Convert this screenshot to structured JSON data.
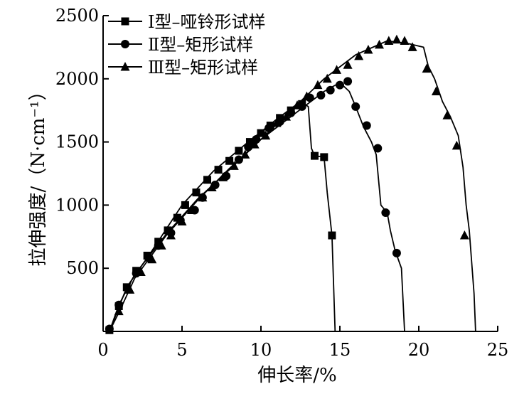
{
  "chart_data": {
    "type": "line",
    "xlabel": "伸长率/%",
    "ylabel": "拉伸强度/（N·cm⁻¹）",
    "xlim": [
      0,
      25
    ],
    "ylim": [
      0,
      2500
    ],
    "xticks": [
      0,
      5,
      10,
      15,
      20,
      25
    ],
    "yticks": [
      500,
      1000,
      1500,
      2000,
      2500
    ],
    "grid": false,
    "legend_position": "top-left",
    "series": [
      {
        "name": "Ⅰ型–哑铃形试样",
        "marker": "square",
        "curve": [
          [
            0.4,
            0
          ],
          [
            1.5,
            350
          ],
          [
            3,
            620
          ],
          [
            5,
            1000
          ],
          [
            7,
            1270
          ],
          [
            9,
            1480
          ],
          [
            11,
            1680
          ],
          [
            12.5,
            1820
          ],
          [
            13,
            1780
          ],
          [
            13.2,
            1450
          ],
          [
            13.4,
            1390
          ],
          [
            14.0,
            1380
          ],
          [
            14.2,
            1100
          ],
          [
            14.5,
            760
          ],
          [
            14.7,
            0
          ]
        ],
        "points": [
          [
            0.4,
            10
          ],
          [
            1.0,
            200
          ],
          [
            1.5,
            350
          ],
          [
            2.1,
            480
          ],
          [
            2.8,
            600
          ],
          [
            3.5,
            710
          ],
          [
            4.1,
            800
          ],
          [
            4.7,
            900
          ],
          [
            5.2,
            1000
          ],
          [
            5.9,
            1100
          ],
          [
            6.6,
            1200
          ],
          [
            7.3,
            1280
          ],
          [
            8.0,
            1350
          ],
          [
            8.6,
            1430
          ],
          [
            9.3,
            1500
          ],
          [
            10.0,
            1570
          ],
          [
            10.6,
            1630
          ],
          [
            11.2,
            1690
          ],
          [
            11.9,
            1750
          ],
          [
            12.6,
            1800
          ],
          [
            13.4,
            1390
          ],
          [
            14.0,
            1380
          ],
          [
            14.5,
            760
          ]
        ]
      },
      {
        "name": "Ⅱ型–矩形试样",
        "marker": "circle",
        "curve": [
          [
            0.4,
            0
          ],
          [
            1,
            210
          ],
          [
            2,
            450
          ],
          [
            4,
            770
          ],
          [
            6,
            1050
          ],
          [
            8,
            1280
          ],
          [
            10,
            1520
          ],
          [
            12,
            1710
          ],
          [
            14,
            1900
          ],
          [
            15,
            1970
          ],
          [
            15.6,
            1900
          ],
          [
            16,
            1780
          ],
          [
            16.5,
            1620
          ],
          [
            17,
            1500
          ],
          [
            17.3,
            1400
          ],
          [
            17.6,
            1000
          ],
          [
            18,
            940
          ],
          [
            18.2,
            800
          ],
          [
            18.5,
            640
          ],
          [
            18.9,
            500
          ],
          [
            19.1,
            0
          ]
        ],
        "points": [
          [
            0.4,
            20
          ],
          [
            1.0,
            210
          ],
          [
            2.1,
            460
          ],
          [
            2.9,
            580
          ],
          [
            3.5,
            680
          ],
          [
            4.3,
            780
          ],
          [
            4.9,
            880
          ],
          [
            5.8,
            960
          ],
          [
            6.3,
            1060
          ],
          [
            7.1,
            1160
          ],
          [
            7.8,
            1230
          ],
          [
            8.6,
            1360
          ],
          [
            9.2,
            1460
          ],
          [
            9.7,
            1520
          ],
          [
            10.5,
            1610
          ],
          [
            11.2,
            1660
          ],
          [
            11.9,
            1730
          ],
          [
            12.6,
            1780
          ],
          [
            13.1,
            1850
          ],
          [
            13.8,
            1870
          ],
          [
            14.4,
            1910
          ],
          [
            15.0,
            1950
          ],
          [
            15.5,
            1980
          ],
          [
            16.0,
            1780
          ],
          [
            16.7,
            1630
          ],
          [
            17.4,
            1450
          ],
          [
            17.9,
            940
          ],
          [
            18.6,
            620
          ]
        ]
      },
      {
        "name": "Ⅲ型–矩形试样",
        "marker": "triangle",
        "curve": [
          [
            0.4,
            0
          ],
          [
            1.0,
            150
          ],
          [
            2,
            420
          ],
          [
            4,
            760
          ],
          [
            6,
            1040
          ],
          [
            8,
            1290
          ],
          [
            10,
            1520
          ],
          [
            12,
            1760
          ],
          [
            14,
            2000
          ],
          [
            16,
            2190
          ],
          [
            18,
            2300
          ],
          [
            19.3,
            2280
          ],
          [
            20.3,
            2250
          ],
          [
            20.6,
            2100
          ],
          [
            21,
            2000
          ],
          [
            21.5,
            1820
          ],
          [
            22,
            1700
          ],
          [
            22.5,
            1550
          ],
          [
            22.8,
            1300
          ],
          [
            23.0,
            1000
          ],
          [
            23.2,
            800
          ],
          [
            23.5,
            300
          ],
          [
            23.6,
            0
          ]
        ],
        "points": [
          [
            1.0,
            160
          ],
          [
            1.7,
            330
          ],
          [
            2.4,
            470
          ],
          [
            3.1,
            570
          ],
          [
            3.7,
            680
          ],
          [
            4.3,
            760
          ],
          [
            5.0,
            870
          ],
          [
            5.6,
            960
          ],
          [
            6.3,
            1060
          ],
          [
            6.9,
            1140
          ],
          [
            7.6,
            1220
          ],
          [
            8.3,
            1310
          ],
          [
            9.0,
            1400
          ],
          [
            9.6,
            1480
          ],
          [
            10.3,
            1550
          ],
          [
            11.0,
            1650
          ],
          [
            11.6,
            1700
          ],
          [
            12.3,
            1790
          ],
          [
            12.9,
            1860
          ],
          [
            13.6,
            1950
          ],
          [
            14.2,
            2000
          ],
          [
            14.8,
            2070
          ],
          [
            15.5,
            2110
          ],
          [
            16.2,
            2180
          ],
          [
            16.8,
            2230
          ],
          [
            17.5,
            2270
          ],
          [
            18.1,
            2300
          ],
          [
            18.6,
            2310
          ],
          [
            19.1,
            2300
          ],
          [
            19.6,
            2250
          ],
          [
            20.5,
            2080
          ],
          [
            21.1,
            1900
          ],
          [
            21.8,
            1710
          ],
          [
            22.4,
            1470
          ],
          [
            22.9,
            760
          ]
        ]
      }
    ]
  }
}
